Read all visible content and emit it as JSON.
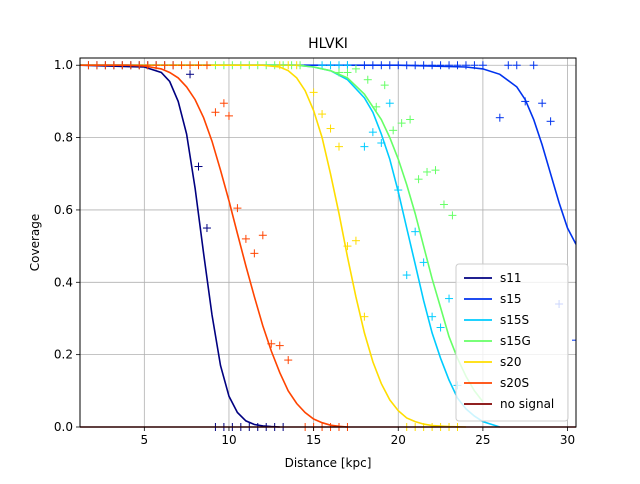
{
  "chart_data": {
    "type": "line",
    "title": "HLVKI",
    "xlabel": "Distance [kpc]",
    "ylabel": "Coverage",
    "xlim": [
      1.2,
      30.5
    ],
    "ylim": [
      0.0,
      1.02
    ],
    "xticks": [
      5,
      10,
      15,
      20,
      25,
      30
    ],
    "yticks": [
      0.0,
      0.2,
      0.4,
      0.6,
      0.8,
      1.0
    ],
    "xtick_labels": [
      "5",
      "10",
      "15",
      "20",
      "25",
      "30"
    ],
    "ytick_labels": [
      "0.0",
      "0.2",
      "0.4",
      "0.6",
      "0.8",
      "1.0"
    ],
    "grid": true,
    "legend_position": "lower-right",
    "series": [
      {
        "name": "s11",
        "color": "#000080",
        "curve": {
          "x": [
            1.2,
            5,
            6,
            6.5,
            7,
            7.5,
            8,
            8.5,
            9,
            9.5,
            10,
            10.5,
            11,
            11.5,
            12,
            12.5,
            13
          ],
          "y": [
            1.0,
            0.995,
            0.98,
            0.955,
            0.9,
            0.81,
            0.66,
            0.48,
            0.31,
            0.17,
            0.085,
            0.04,
            0.017,
            0.007,
            0.003,
            0.001,
            0.0
          ]
        },
        "markers": {
          "x": [
            1.2,
            1.7,
            2.2,
            2.7,
            3.2,
            3.7,
            4.2,
            4.7,
            5.2,
            5.7,
            6.2,
            6.7,
            7.7,
            8.2,
            8.7,
            9.2,
            9.7,
            10.2,
            10.7,
            11.2,
            11.7,
            12.2,
            12.7,
            13.2
          ],
          "y": [
            1.0,
            1.0,
            1.0,
            1.0,
            1.0,
            1.0,
            1.0,
            1.0,
            1.0,
            1.0,
            1.0,
            1.0,
            0.975,
            0.72,
            0.55,
            0.0,
            0.0,
            0.0,
            0.0,
            0.0,
            0.0,
            0.0,
            0.0,
            0.0
          ]
        }
      },
      {
        "name": "s15",
        "color": "#0033ee",
        "curve": {
          "x": [
            1.2,
            20,
            24,
            25,
            26,
            27,
            27.5,
            28,
            28.5,
            29,
            29.5,
            30,
            30.5
          ],
          "y": [
            1.0,
            1.0,
            0.995,
            0.99,
            0.975,
            0.94,
            0.905,
            0.85,
            0.78,
            0.7,
            0.62,
            0.55,
            0.505
          ]
        },
        "markers": {
          "x": [
            17.0,
            18.0,
            18.5,
            19.0,
            19.5,
            20.0,
            20.5,
            21.0,
            21.5,
            22.0,
            22.5,
            23.0,
            23.5,
            24.0,
            24.5,
            25.0,
            26.0,
            26.5,
            27.0,
            28.0,
            27.5,
            28.5,
            29.0,
            29.5,
            30.5
          ],
          "y": [
            1.0,
            1.0,
            1.0,
            1.0,
            1.0,
            1.0,
            1.0,
            1.0,
            1.0,
            1.0,
            1.0,
            1.0,
            1.0,
            1.0,
            1.0,
            1.0,
            0.855,
            1.0,
            1.0,
            1.0,
            0.9,
            0.895,
            0.845,
            0.34,
            0.24
          ]
        }
      },
      {
        "name": "s15S",
        "color": "#00ccff",
        "curve": {
          "x": [
            1.2,
            14,
            15,
            16,
            17,
            18,
            18.5,
            19,
            19.5,
            20,
            20.5,
            21,
            21.5,
            22,
            22.5,
            23,
            23.5,
            24,
            24.5,
            25,
            26
          ],
          "y": [
            1.0,
            1.0,
            0.995,
            0.985,
            0.96,
            0.91,
            0.87,
            0.81,
            0.74,
            0.65,
            0.55,
            0.45,
            0.35,
            0.26,
            0.19,
            0.13,
            0.08,
            0.05,
            0.03,
            0.015,
            0.0
          ]
        },
        "markers": {
          "x": [
            15.5,
            16.0,
            16.5,
            17.0,
            18.0,
            18.5,
            19.0,
            19.5,
            20.0,
            20.5,
            21.0,
            21.5,
            22.0,
            22.5,
            23.0,
            23.5
          ],
          "y": [
            1.0,
            1.0,
            1.0,
            1.0,
            0.775,
            0.815,
            0.785,
            0.895,
            0.655,
            0.42,
            0.54,
            0.455,
            0.305,
            0.275,
            0.355,
            0.115
          ]
        }
      },
      {
        "name": "s15G",
        "color": "#66ff66",
        "curve": {
          "x": [
            1.2,
            14,
            15,
            16,
            17,
            18,
            19,
            19.5,
            20,
            20.5,
            21,
            21.5,
            22,
            22.5,
            23,
            23.5,
            24,
            24.5,
            25
          ],
          "y": [
            1.0,
            1.0,
            0.995,
            0.985,
            0.965,
            0.92,
            0.85,
            0.8,
            0.74,
            0.67,
            0.59,
            0.5,
            0.41,
            0.33,
            0.25,
            0.19,
            0.14,
            0.1,
            0.07
          ]
        },
        "markers": {
          "x": [
            9.2,
            9.7,
            10.2,
            10.7,
            11.2,
            11.7,
            12.2,
            12.7,
            13.2,
            13.7,
            14.2,
            16.5,
            17.0,
            17.5,
            18.2,
            18.7,
            19.2,
            19.7,
            20.2,
            20.7,
            21.2,
            21.7,
            22.2,
            22.7,
            23.2
          ],
          "y": [
            1.0,
            1.0,
            1.0,
            1.0,
            1.0,
            1.0,
            1.0,
            1.0,
            1.0,
            1.0,
            1.0,
            0.98,
            0.98,
            0.99,
            0.96,
            0.885,
            0.945,
            0.82,
            0.84,
            0.85,
            0.685,
            0.705,
            0.71,
            0.615,
            0.585
          ]
        }
      },
      {
        "name": "s20",
        "color": "#ffdd00",
        "curve": {
          "x": [
            1.2,
            12,
            13,
            13.5,
            14,
            14.5,
            15,
            15.5,
            16,
            16.5,
            17,
            17.5,
            18,
            18.5,
            19,
            19.5,
            20,
            20.5,
            21,
            21.5,
            22,
            23,
            24
          ],
          "y": [
            1.0,
            1.0,
            0.995,
            0.985,
            0.965,
            0.93,
            0.875,
            0.8,
            0.7,
            0.59,
            0.47,
            0.36,
            0.26,
            0.18,
            0.12,
            0.075,
            0.045,
            0.025,
            0.015,
            0.008,
            0.004,
            0.001,
            0.0
          ]
        },
        "markers": {
          "x": [
            13.0,
            13.5,
            14.0,
            15.0,
            15.5,
            16.0,
            16.5,
            17.0,
            17.5,
            18.0,
            20.5,
            21.0,
            21.5,
            22.0,
            22.5,
            23.0,
            23.5
          ],
          "y": [
            1.0,
            1.0,
            1.0,
            0.925,
            0.865,
            0.825,
            0.775,
            0.5,
            0.515,
            0.305,
            0.0,
            0.0,
            0.0,
            0.0,
            0.0,
            0.0,
            0.0
          ]
        }
      },
      {
        "name": "s20S",
        "color": "#ff4400",
        "curve": {
          "x": [
            1.2,
            4,
            5,
            6,
            6.5,
            7,
            7.5,
            8,
            8.5,
            9,
            9.5,
            10,
            10.5,
            11,
            11.5,
            12,
            12.5,
            13,
            13.5,
            14,
            14.5,
            15,
            15.5,
            16,
            16.5,
            17
          ],
          "y": [
            1.0,
            1.0,
            0.998,
            0.99,
            0.98,
            0.965,
            0.94,
            0.905,
            0.855,
            0.79,
            0.71,
            0.625,
            0.535,
            0.445,
            0.36,
            0.28,
            0.21,
            0.15,
            0.1,
            0.065,
            0.04,
            0.022,
            0.012,
            0.005,
            0.002,
            0.0
          ]
        },
        "markers": {
          "x": [
            1.2,
            1.7,
            2.2,
            2.7,
            3.2,
            3.7,
            4.2,
            4.7,
            5.2,
            5.7,
            6.2,
            6.7,
            7.2,
            7.7,
            8.2,
            8.7,
            9.2,
            9.7,
            10.0,
            10.5,
            11.0,
            11.5,
            12.0,
            12.5,
            13.0,
            13.5,
            14.5,
            15.0,
            15.5,
            16.0,
            16.5,
            17.0
          ],
          "y": [
            1.0,
            1.0,
            1.0,
            1.0,
            1.0,
            1.0,
            1.0,
            1.0,
            1.0,
            1.0,
            1.0,
            1.0,
            1.0,
            1.0,
            1.0,
            1.0,
            0.87,
            0.895,
            0.86,
            0.605,
            0.52,
            0.48,
            0.53,
            0.23,
            0.225,
            0.185,
            0.0,
            0.0,
            0.0,
            0.0,
            0.0,
            0.0
          ]
        }
      },
      {
        "name": "no signal",
        "color": "#800000",
        "curve": {
          "x": [
            1.2,
            30.5
          ],
          "y": [
            0.0,
            0.0
          ]
        },
        "markers": {
          "x": [],
          "y": []
        }
      }
    ]
  }
}
